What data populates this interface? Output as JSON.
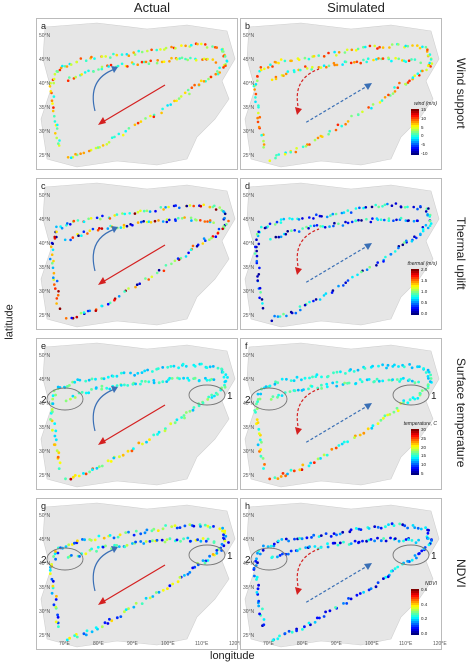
{
  "headers": {
    "actual": "Actual",
    "simulated": "Simulated"
  },
  "axis": {
    "ylabel": "latitude",
    "xlabel": "longitude"
  },
  "lat_ticks": [
    "50°N",
    "45°N",
    "40°N",
    "35°N",
    "30°N",
    "25°N"
  ],
  "lon_ticks": [
    "70°E",
    "80°E",
    "90°E",
    "100°E",
    "110°E",
    "120°E"
  ],
  "colors": {
    "land": "#e6e6e6",
    "arrow_red": "#d42020",
    "arrow_blue": "#3a6fb5"
  },
  "chart_data": [
    {
      "type": "scatter",
      "row": "Wind support",
      "panels": [
        "a",
        "b"
      ],
      "colorbar": {
        "title": "wind (m/s)",
        "ticks": [
          "15",
          "10",
          "5",
          "0",
          "-5",
          "-10"
        ]
      }
    },
    {
      "type": "scatter",
      "row": "Thermal uplift",
      "panels": [
        "c",
        "d"
      ],
      "colorbar": {
        "title": "thermal (m/s)",
        "ticks": [
          "2.0",
          "1.5",
          "1.0",
          "0.5",
          "0.0"
        ]
      }
    },
    {
      "type": "scatter",
      "row": "Surface temperature",
      "panels": [
        "e",
        "f"
      ],
      "colorbar": {
        "title": "temperature, C",
        "ticks": [
          "30",
          "25",
          "20",
          "15",
          "10",
          "5"
        ]
      },
      "annotations": [
        "2",
        "1"
      ]
    },
    {
      "type": "scatter",
      "row": "NDVI",
      "panels": [
        "g",
        "h"
      ],
      "colorbar": {
        "title": "NDVI",
        "ticks": [
          "0.6",
          "0.4",
          "0.2",
          "0.0"
        ]
      },
      "annotations": [
        "2",
        "1"
      ]
    }
  ]
}
